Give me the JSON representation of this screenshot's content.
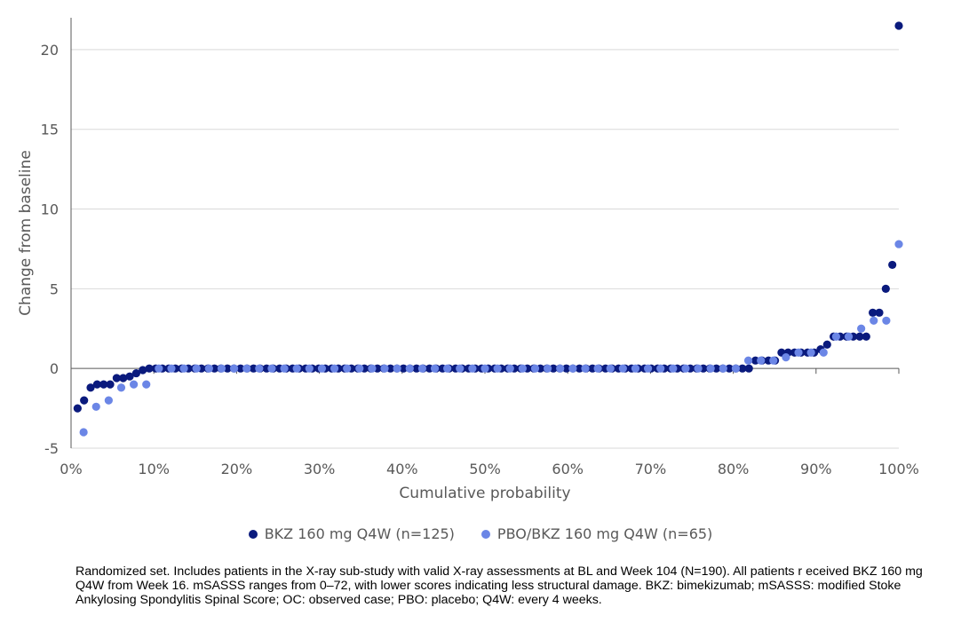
{
  "colors": {
    "bkz": "#0a1a7d",
    "pbo": "#6b86e6",
    "grid": "#d9d9d9",
    "axis": "#595959"
  },
  "chart_data": {
    "type": "scatter",
    "title": "",
    "xlabel": "Cumulative probability",
    "ylabel": "Change from baseline",
    "xlim": [
      0,
      100
    ],
    "ylim": [
      -5,
      22
    ],
    "x_ticks": [
      0,
      10,
      20,
      30,
      40,
      50,
      60,
      70,
      80,
      90,
      100
    ],
    "x_tick_labels": [
      "0%",
      "10%",
      "20%",
      "30%",
      "40%",
      "50%",
      "60%",
      "70%",
      "80%",
      "90%",
      "100%"
    ],
    "y_ticks": [
      -5,
      0,
      5,
      10,
      15,
      20
    ],
    "y_tick_labels": [
      "-5",
      "0",
      "5",
      "10",
      "15",
      "20"
    ],
    "grid": "horizontal",
    "legend_position": "bottom",
    "series": [
      {
        "name": "BKZ 160 mg Q4W (n=125)",
        "color": "#0a1a7d",
        "n": 125,
        "y_sorted": [
          -2.5,
          -2,
          -1.2,
          -1,
          -1,
          -1,
          -0.6,
          -0.6,
          -0.5,
          -0.3,
          -0.1,
          0,
          0,
          0,
          0,
          0,
          0,
          0,
          0,
          0,
          0,
          0,
          0,
          0,
          0,
          0,
          0,
          0,
          0,
          0,
          0,
          0,
          0,
          0,
          0,
          0,
          0,
          0,
          0,
          0,
          0,
          0,
          0,
          0,
          0,
          0,
          0,
          0,
          0,
          0,
          0,
          0,
          0,
          0,
          0,
          0,
          0,
          0,
          0,
          0,
          0,
          0,
          0,
          0,
          0,
          0,
          0,
          0,
          0,
          0,
          0,
          0,
          0,
          0,
          0,
          0,
          0,
          0,
          0,
          0,
          0,
          0,
          0,
          0,
          0,
          0,
          0,
          0,
          0,
          0,
          0,
          0,
          0,
          0,
          0,
          0,
          0,
          0,
          0,
          0,
          0,
          0,
          0,
          0,
          0.5,
          0.5,
          0.5,
          0.5,
          1,
          1,
          1,
          1,
          1,
          1,
          1.2,
          1.5,
          2,
          2,
          2,
          2,
          2,
          2,
          3.5,
          3.5,
          5,
          6.5,
          21.5
        ]
      },
      {
        "name": "PBO/BKZ 160 mg Q4W (n=65)",
        "color": "#6b86e6",
        "n": 65,
        "y_sorted": [
          -4,
          -2.4,
          -2,
          -1.2,
          -1,
          -1,
          0,
          0,
          0,
          0,
          0,
          0,
          0,
          0,
          0,
          0,
          0,
          0,
          0,
          0,
          0,
          0,
          0,
          0,
          0,
          0,
          0,
          0,
          0,
          0,
          0,
          0,
          0,
          0,
          0,
          0,
          0,
          0,
          0,
          0,
          0,
          0,
          0,
          0,
          0,
          0,
          0,
          0,
          0,
          0,
          0,
          0,
          0,
          0.5,
          0.5,
          0.5,
          0.7,
          1,
          1,
          1,
          2,
          2,
          2.5,
          3,
          3,
          7.8
        ]
      }
    ]
  },
  "footnote": "Randomized set. Includes patients in the X-ray sub-study with valid X-ray assessments at BL and Week 104 (N=190). All patients r eceived BKZ 160 mg Q4W from Week 16. mSASSS ranges from 0–72, with lower scores indicating less structural damage. BKZ: bimekizumab; mSASSS: modified Stoke Ankylosing Spondylitis Spinal Score; OC: observed case; PBO: placebo; Q4W: every 4 weeks."
}
